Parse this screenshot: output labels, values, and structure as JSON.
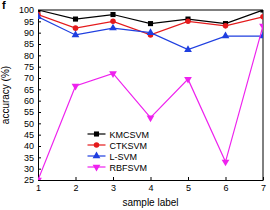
{
  "chart_data": {
    "type": "line",
    "title": "f",
    "x_label": "sample label",
    "y_label": "accuracy (%)",
    "x": [
      1,
      2,
      3,
      4,
      5,
      6,
      7
    ],
    "xlim": [
      1,
      7
    ],
    "xticks": [
      1,
      2,
      3,
      4,
      5,
      6,
      7
    ],
    "ylim": [
      25,
      100
    ],
    "yticks": [
      25,
      30,
      35,
      40,
      45,
      50,
      55,
      60,
      65,
      70,
      75,
      80,
      85,
      90,
      95,
      100
    ],
    "legend": "lower center",
    "series": [
      {
        "name": "KMCSVM",
        "color": "#000000",
        "marker": "square",
        "values": [
          100,
          96,
          98,
          94,
          96,
          94,
          100
        ]
      },
      {
        "name": "CTKSVM",
        "color": "#e41a1c",
        "marker": "circle",
        "values": [
          98,
          92,
          95,
          89,
          95,
          93,
          97
        ]
      },
      {
        "name": "L-SVM",
        "color": "#1f3fe0",
        "marker": "triangle-up",
        "values": [
          97,
          89,
          92,
          90,
          82.5,
          88.5,
          88.5
        ]
      },
      {
        "name": "RBFSVM",
        "color": "#ee22ee",
        "marker": "triangle-down",
        "values": [
          25,
          66.5,
          72,
          52.5,
          69.5,
          33,
          93
        ]
      }
    ]
  }
}
